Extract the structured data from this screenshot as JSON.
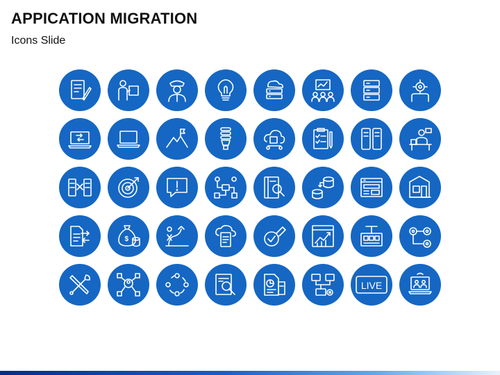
{
  "slide": {
    "title": "APPICATION MIGRATION",
    "subtitle": "Icons Slide"
  },
  "colors": {
    "circle": "#1567c3",
    "footer_start": "#0b2a8a",
    "footer_end": "#e8f2fc"
  },
  "icons": {
    "rows": [
      [
        "document-sign-icon",
        "presenter-puzzle-icon",
        "pilot-icon",
        "lightbulb-icon",
        "cloud-server-icon",
        "team-meeting-icon",
        "database-icon",
        "gear-head-icon"
      ],
      [
        "laptop-transfer-icon",
        "laptop-icon",
        "mountain-flag-icon",
        "cfl-bulb-icon",
        "cloud-network-icon",
        "checklist-board-icon",
        "mobile-devices-icon",
        "desk-worker-icon"
      ],
      [
        "server-exchange-icon",
        "target-icon",
        "alert-chat-icon",
        "network-hierarchy-icon",
        "book-search-icon",
        "data-migration-icon",
        "browser-window-icon",
        "blueprint-icon"
      ],
      [
        "file-transfer-icon",
        "money-bag-icon",
        "growth-strategy-icon",
        "cloud-document-icon",
        "badge-check-icon",
        "growth-report-icon",
        "gateway-icon",
        "gear-process-icon"
      ],
      [
        "tools-icon",
        "network-user-icon",
        "team-cycle-icon",
        "search-document-icon",
        "report-chart-icon",
        "server-network-icon",
        "live-icon",
        "online-meeting-icon"
      ]
    ],
    "live_label": "LIVE"
  }
}
